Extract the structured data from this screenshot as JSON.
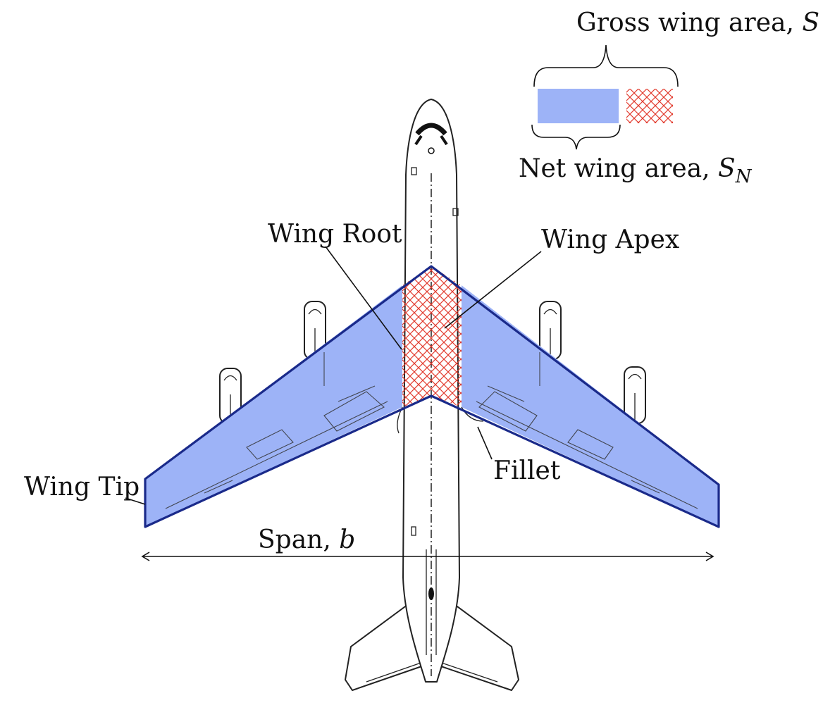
{
  "colors": {
    "net_wing_fill": "#9db3f7",
    "wing_outline": "#1a2a8a",
    "hatch": "#e23b2e",
    "airframe_line": "#222222"
  },
  "legend": {
    "gross_label": "Gross wing area, ",
    "gross_symbol": "S",
    "net_label": "Net wing area, ",
    "net_symbol": "S",
    "net_subscript": "N"
  },
  "labels": {
    "wing_root": "Wing Root",
    "wing_apex": "Wing Apex",
    "wing_tip": "Wing Tip",
    "fillet": "Fillet",
    "span_label": "Span, ",
    "span_symbol": "b"
  }
}
